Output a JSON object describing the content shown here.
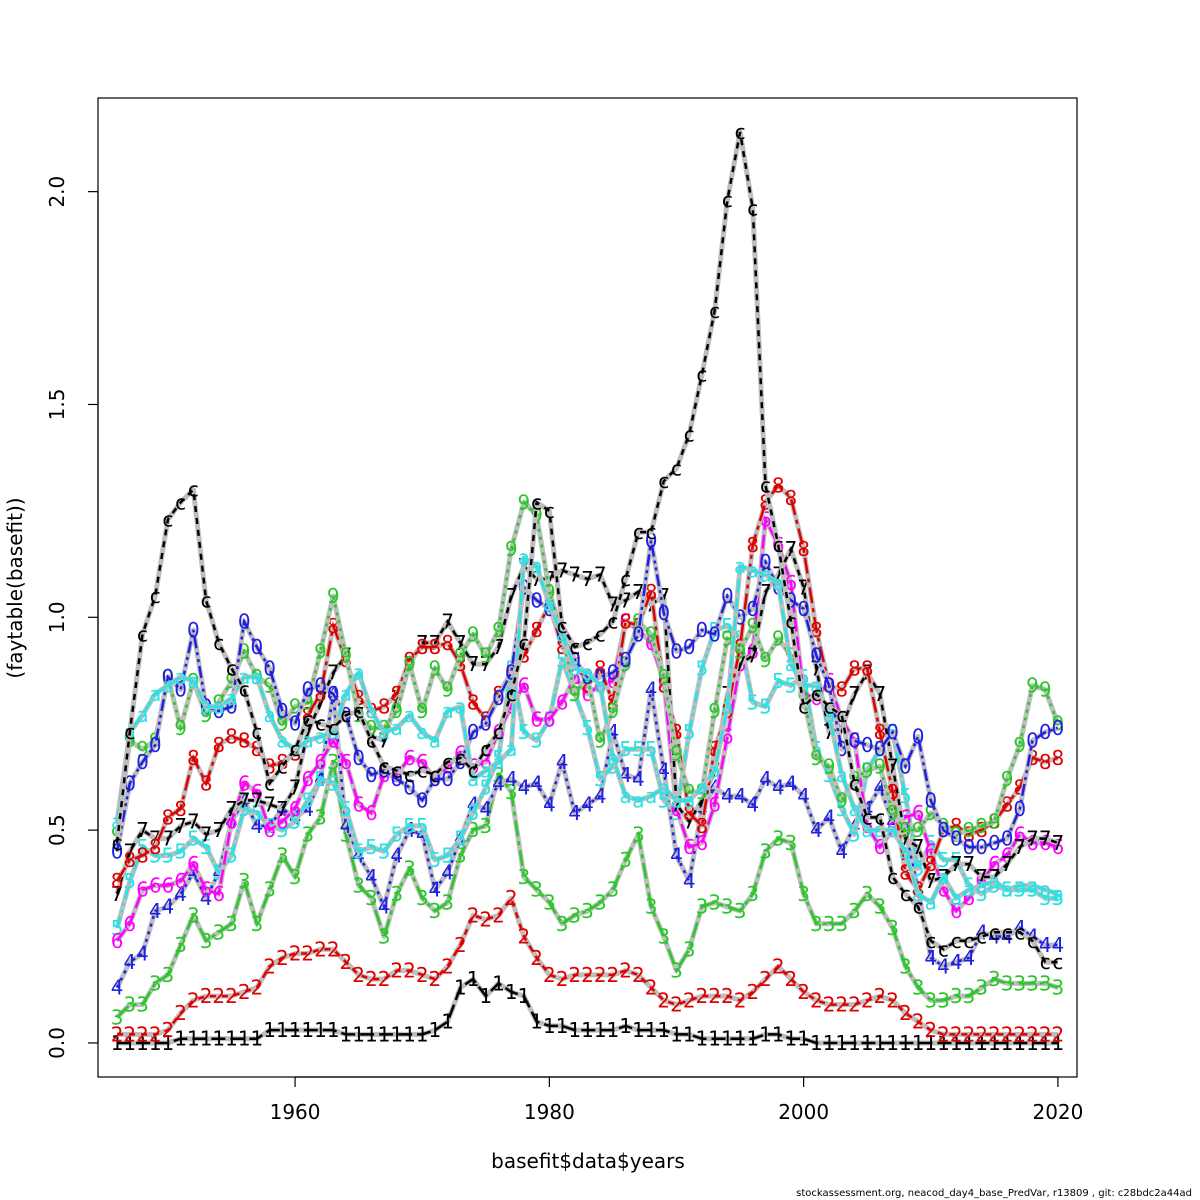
{
  "chart_data": {
    "type": "line",
    "xlabel": "basefit$data$years",
    "ylabel": "(faytable(basefit))",
    "xlim": [
      1944.5,
      2021.5
    ],
    "ylim": [
      -0.08,
      2.22
    ],
    "xticks": [
      1960,
      1980,
      2000,
      2020
    ],
    "xtick_labels": [
      "1960",
      "1980",
      "2000",
      "2020"
    ],
    "yticks": [
      0.0,
      0.5,
      1.0,
      1.5,
      2.0
    ],
    "ytick_labels": [
      "0.0",
      "0.5",
      "1.0",
      "1.5",
      "2.0"
    ],
    "grid": false,
    "years": [
      1946,
      1947,
      1948,
      1949,
      1950,
      1951,
      1952,
      1953,
      1954,
      1955,
      1956,
      1957,
      1958,
      1959,
      1960,
      1961,
      1962,
      1963,
      1964,
      1965,
      1966,
      1967,
      1968,
      1969,
      1970,
      1971,
      1972,
      1973,
      1974,
      1975,
      1976,
      1977,
      1978,
      1979,
      1980,
      1981,
      1982,
      1983,
      1984,
      1985,
      1986,
      1987,
      1988,
      1989,
      1990,
      1991,
      1992,
      1993,
      1994,
      1995,
      1996,
      1997,
      1998,
      1999,
      2000,
      2001,
      2002,
      2003,
      2004,
      2005,
      2006,
      2007,
      2008,
      2009,
      2010,
      2011,
      2012,
      2013,
      2014,
      2015,
      2016,
      2017,
      2018,
      2019,
      2020
    ],
    "series": [
      {
        "label": "1",
        "color": "#000000",
        "values": [
          0.0,
          0.0,
          0.0,
          0.0,
          0.0,
          0.01,
          0.01,
          0.01,
          0.01,
          0.01,
          0.01,
          0.01,
          0.03,
          0.03,
          0.03,
          0.03,
          0.03,
          0.03,
          0.02,
          0.02,
          0.02,
          0.02,
          0.02,
          0.02,
          0.02,
          0.03,
          0.05,
          0.13,
          0.15,
          0.11,
          0.14,
          0.12,
          0.11,
          0.05,
          0.04,
          0.04,
          0.03,
          0.03,
          0.03,
          0.03,
          0.04,
          0.03,
          0.03,
          0.03,
          0.02,
          0.02,
          0.01,
          0.01,
          0.01,
          0.01,
          0.01,
          0.02,
          0.02,
          0.01,
          0.01,
          0.0,
          0.0,
          0.0,
          0.0,
          0.0,
          0.0,
          0.0,
          0.0,
          0.0,
          0.0,
          0.0,
          0.0,
          0.0,
          0.0,
          0.0,
          0.0,
          0.0,
          0.0,
          0.0,
          0.0
        ]
      },
      {
        "label": "2",
        "color": "#df0000",
        "values": [
          0.02,
          0.02,
          0.02,
          0.02,
          0.03,
          0.07,
          0.1,
          0.11,
          0.11,
          0.11,
          0.12,
          0.13,
          0.18,
          0.2,
          0.21,
          0.21,
          0.22,
          0.22,
          0.19,
          0.16,
          0.15,
          0.15,
          0.17,
          0.17,
          0.16,
          0.15,
          0.18,
          0.23,
          0.3,
          0.29,
          0.3,
          0.34,
          0.25,
          0.2,
          0.16,
          0.15,
          0.16,
          0.16,
          0.16,
          0.16,
          0.17,
          0.16,
          0.13,
          0.1,
          0.09,
          0.1,
          0.11,
          0.11,
          0.11,
          0.1,
          0.12,
          0.15,
          0.18,
          0.15,
          0.12,
          0.1,
          0.09,
          0.09,
          0.09,
          0.1,
          0.11,
          0.1,
          0.07,
          0.05,
          0.03,
          0.02,
          0.02,
          0.02,
          0.02,
          0.02,
          0.02,
          0.02,
          0.02,
          0.02,
          0.02
        ]
      },
      {
        "label": "3",
        "color": "#28c828",
        "values": [
          0.06,
          0.09,
          0.09,
          0.14,
          0.16,
          0.23,
          0.3,
          0.24,
          0.26,
          0.28,
          0.38,
          0.28,
          0.36,
          0.44,
          0.39,
          0.49,
          0.53,
          0.66,
          0.49,
          0.37,
          0.34,
          0.25,
          0.35,
          0.41,
          0.34,
          0.31,
          0.33,
          0.44,
          0.5,
          0.51,
          0.63,
          0.59,
          0.39,
          0.36,
          0.33,
          0.28,
          0.3,
          0.31,
          0.33,
          0.36,
          0.43,
          0.49,
          0.32,
          0.25,
          0.17,
          0.22,
          0.32,
          0.33,
          0.32,
          0.31,
          0.35,
          0.45,
          0.48,
          0.47,
          0.35,
          0.28,
          0.28,
          0.28,
          0.31,
          0.35,
          0.32,
          0.27,
          0.18,
          0.13,
          0.1,
          0.1,
          0.11,
          0.11,
          0.13,
          0.15,
          0.14,
          0.14,
          0.14,
          0.14,
          0.13
        ]
      },
      {
        "label": "4",
        "color": "#2020e0",
        "values": [
          0.13,
          0.19,
          0.21,
          0.31,
          0.32,
          0.35,
          0.4,
          0.34,
          0.4,
          0.52,
          0.57,
          0.51,
          0.51,
          0.55,
          0.53,
          0.55,
          0.62,
          0.82,
          0.51,
          0.44,
          0.39,
          0.32,
          0.44,
          0.5,
          0.49,
          0.36,
          0.4,
          0.48,
          0.56,
          0.55,
          0.61,
          0.62,
          0.6,
          0.61,
          0.56,
          0.66,
          0.54,
          0.56,
          0.58,
          0.73,
          0.63,
          0.62,
          0.83,
          0.64,
          0.44,
          0.38,
          0.55,
          0.6,
          0.58,
          0.58,
          0.56,
          0.62,
          0.6,
          0.61,
          0.58,
          0.5,
          0.53,
          0.45,
          0.51,
          0.55,
          0.6,
          0.52,
          0.5,
          0.36,
          0.2,
          0.18,
          0.19,
          0.2,
          0.26,
          0.25,
          0.25,
          0.27,
          0.25,
          0.23,
          0.23
        ]
      },
      {
        "label": "5",
        "color": "#28e2e5",
        "values": [
          0.27,
          0.38,
          0.46,
          0.44,
          0.44,
          0.45,
          0.48,
          0.46,
          0.4,
          0.44,
          0.55,
          0.54,
          0.51,
          0.5,
          0.52,
          0.57,
          0.62,
          0.61,
          0.55,
          0.45,
          0.46,
          0.45,
          0.49,
          0.51,
          0.51,
          0.43,
          0.44,
          0.48,
          0.54,
          0.6,
          0.67,
          0.88,
          0.73,
          0.71,
          0.76,
          0.9,
          0.82,
          0.74,
          0.62,
          0.65,
          0.69,
          0.69,
          0.69,
          0.57,
          0.54,
          0.73,
          0.88,
          0.97,
          0.98,
          0.95,
          0.8,
          0.79,
          0.85,
          0.84,
          0.86,
          0.69,
          0.63,
          0.55,
          0.49,
          0.64,
          0.69,
          0.73,
          0.58,
          0.41,
          0.47,
          0.43,
          0.43,
          0.37,
          0.35,
          0.37,
          0.36,
          0.36,
          0.36,
          0.34,
          0.34
        ]
      },
      {
        "label": "6",
        "color": "#ff00ff",
        "values": [
          0.24,
          0.28,
          0.36,
          0.37,
          0.37,
          0.38,
          0.42,
          0.36,
          0.35,
          0.52,
          0.61,
          0.59,
          0.5,
          0.52,
          0.55,
          0.62,
          0.66,
          0.71,
          0.66,
          0.56,
          0.54,
          0.63,
          0.63,
          0.67,
          0.66,
          0.62,
          0.65,
          0.68,
          0.65,
          0.66,
          0.73,
          0.79,
          0.84,
          0.76,
          0.76,
          0.8,
          0.86,
          0.82,
          0.84,
          0.85,
          0.99,
          0.97,
          0.94,
          0.85,
          0.55,
          0.46,
          0.47,
          0.56,
          0.72,
          0.89,
          0.92,
          1.23,
          1.17,
          1.08,
          0.82,
          0.81,
          0.85,
          0.76,
          0.71,
          0.51,
          0.46,
          0.5,
          0.53,
          0.54,
          0.45,
          0.36,
          0.31,
          0.34,
          0.38,
          0.42,
          0.44,
          0.49,
          0.47,
          0.47,
          0.46
        ]
      },
      {
        "label": "7",
        "color": "#000000",
        "values": [
          0.35,
          0.45,
          0.5,
          0.48,
          0.48,
          0.51,
          0.52,
          0.49,
          0.5,
          0.55,
          0.57,
          0.57,
          0.56,
          0.55,
          0.6,
          0.73,
          0.8,
          0.87,
          0.91,
          0.77,
          0.72,
          0.71,
          0.81,
          0.89,
          0.94,
          0.94,
          0.99,
          0.94,
          0.89,
          0.89,
          0.93,
          1.05,
          1.12,
          1.09,
          1.09,
          1.11,
          1.1,
          1.09,
          1.1,
          1.03,
          1.04,
          1.06,
          1.03,
          1.05,
          0.56,
          0.52,
          0.57,
          0.64,
          0.82,
          0.89,
          0.91,
          1.06,
          1.1,
          1.16,
          1.07,
          0.88,
          0.73,
          0.74,
          0.82,
          0.87,
          0.82,
          0.65,
          0.48,
          0.46,
          0.38,
          0.39,
          0.42,
          0.42,
          0.39,
          0.39,
          0.42,
          0.46,
          0.48,
          0.48,
          0.47
        ]
      },
      {
        "label": "8",
        "color": "#df0000",
        "values": [
          0.38,
          0.43,
          0.44,
          0.46,
          0.53,
          0.55,
          0.67,
          0.61,
          0.7,
          0.72,
          0.71,
          0.69,
          0.65,
          0.66,
          0.68,
          0.77,
          0.82,
          0.98,
          0.9,
          0.81,
          0.78,
          0.79,
          0.82,
          0.9,
          0.93,
          0.93,
          0.94,
          0.89,
          0.8,
          0.76,
          0.82,
          0.87,
          0.91,
          0.97,
          1.03,
          0.93,
          0.9,
          0.84,
          0.88,
          0.8,
          0.99,
          0.98,
          1.06,
          0.84,
          0.73,
          0.54,
          0.51,
          0.69,
          0.78,
          0.93,
          1.17,
          1.27,
          1.31,
          1.28,
          1.16,
          0.97,
          0.84,
          0.83,
          0.88,
          0.88,
          0.73,
          0.59,
          0.4,
          0.36,
          0.42,
          0.5,
          0.51,
          0.49,
          0.5,
          0.52,
          0.56,
          0.6,
          0.67,
          0.66,
          0.67
        ]
      },
      {
        "label": "9",
        "color": "#28c828",
        "values": [
          0.49,
          0.71,
          0.69,
          0.71,
          0.86,
          0.74,
          0.85,
          0.77,
          0.8,
          0.85,
          0.92,
          0.86,
          0.84,
          0.75,
          0.79,
          0.8,
          0.92,
          1.05,
          0.91,
          0.77,
          0.74,
          0.74,
          0.78,
          0.89,
          0.78,
          0.88,
          0.83,
          0.91,
          0.96,
          0.91,
          0.97,
          1.16,
          1.27,
          1.24,
          1.06,
          0.96,
          0.82,
          0.86,
          0.71,
          0.78,
          0.89,
          0.99,
          0.96,
          0.86,
          0.68,
          0.59,
          0.59,
          0.78,
          0.95,
          0.92,
          0.98,
          0.9,
          0.95,
          0.91,
          0.81,
          0.67,
          0.65,
          0.57,
          0.62,
          0.64,
          0.65,
          0.54,
          0.5,
          0.5,
          0.54,
          0.51,
          0.49,
          0.5,
          0.51,
          0.52,
          0.62,
          0.7,
          0.84,
          0.83,
          0.75
        ]
      },
      {
        "label": "0",
        "color": "#2020e0",
        "values": [
          0.45,
          0.61,
          0.66,
          0.7,
          0.86,
          0.83,
          0.97,
          0.79,
          0.78,
          0.79,
          0.99,
          0.93,
          0.88,
          0.78,
          0.75,
          0.83,
          0.84,
          0.82,
          0.77,
          0.67,
          0.63,
          0.64,
          0.62,
          0.6,
          0.57,
          0.62,
          0.62,
          0.66,
          0.73,
          0.75,
          0.81,
          0.87,
          1.07,
          1.04,
          1.02,
          0.96,
          0.9,
          0.86,
          0.86,
          0.87,
          0.9,
          0.96,
          1.18,
          1.01,
          0.92,
          0.93,
          0.97,
          0.96,
          1.05,
          1.0,
          1.02,
          1.13,
          1.07,
          1.04,
          1.02,
          0.91,
          0.84,
          0.69,
          0.71,
          0.7,
          0.69,
          0.73,
          0.65,
          0.72,
          0.57,
          0.5,
          0.48,
          0.46,
          0.46,
          0.47,
          0.48,
          0.55,
          0.71,
          0.73,
          0.74
        ]
      },
      {
        "label": "a",
        "color": "#28e2e5",
        "values": [
          0.52,
          0.73,
          0.77,
          0.82,
          0.84,
          0.86,
          0.85,
          0.79,
          0.79,
          0.81,
          0.86,
          0.86,
          0.77,
          0.71,
          0.69,
          0.71,
          0.72,
          0.73,
          0.82,
          0.87,
          0.78,
          0.73,
          0.74,
          0.77,
          0.73,
          0.71,
          0.78,
          0.79,
          0.62,
          0.64,
          0.66,
          0.69,
          1.14,
          1.12,
          1.03,
          0.96,
          0.88,
          0.87,
          0.84,
          0.67,
          0.58,
          0.57,
          0.58,
          0.6,
          0.57,
          0.57,
          0.6,
          0.64,
          0.79,
          1.12,
          1.11,
          1.1,
          1.08,
          0.89,
          0.84,
          0.84,
          0.77,
          0.63,
          0.55,
          0.5,
          0.5,
          0.5,
          0.45,
          0.35,
          0.33,
          0.39,
          0.34,
          0.36,
          0.37,
          0.38,
          0.36,
          0.37,
          0.37,
          0.36,
          0.35
        ]
      },
      {
        "label": "c",
        "color": "#000000",
        "values": [
          0.47,
          0.73,
          0.96,
          1.05,
          1.23,
          1.27,
          1.3,
          1.04,
          0.94,
          0.88,
          0.83,
          0.73,
          0.61,
          0.65,
          0.69,
          0.76,
          0.75,
          0.74,
          0.77,
          0.78,
          0.71,
          0.65,
          0.64,
          0.63,
          0.64,
          0.63,
          0.66,
          0.67,
          0.64,
          0.69,
          0.73,
          0.82,
          0.94,
          1.27,
          1.25,
          0.98,
          0.93,
          0.94,
          0.96,
          0.99,
          1.09,
          1.2,
          1.2,
          1.32,
          1.35,
          1.43,
          1.57,
          1.72,
          1.98,
          2.14,
          1.96,
          1.31,
          1.17,
          0.99,
          0.79,
          0.82,
          0.79,
          0.77,
          0.61,
          0.53,
          0.53,
          0.39,
          0.35,
          0.32,
          0.24,
          0.22,
          0.24,
          0.24,
          0.25,
          0.26,
          0.26,
          0.26,
          0.24,
          0.19,
          0.19
        ]
      }
    ]
  },
  "footer": "stockassessment.org, neacod_day4_base_PredVar, r13809 , git: c28bdc2a44ad"
}
